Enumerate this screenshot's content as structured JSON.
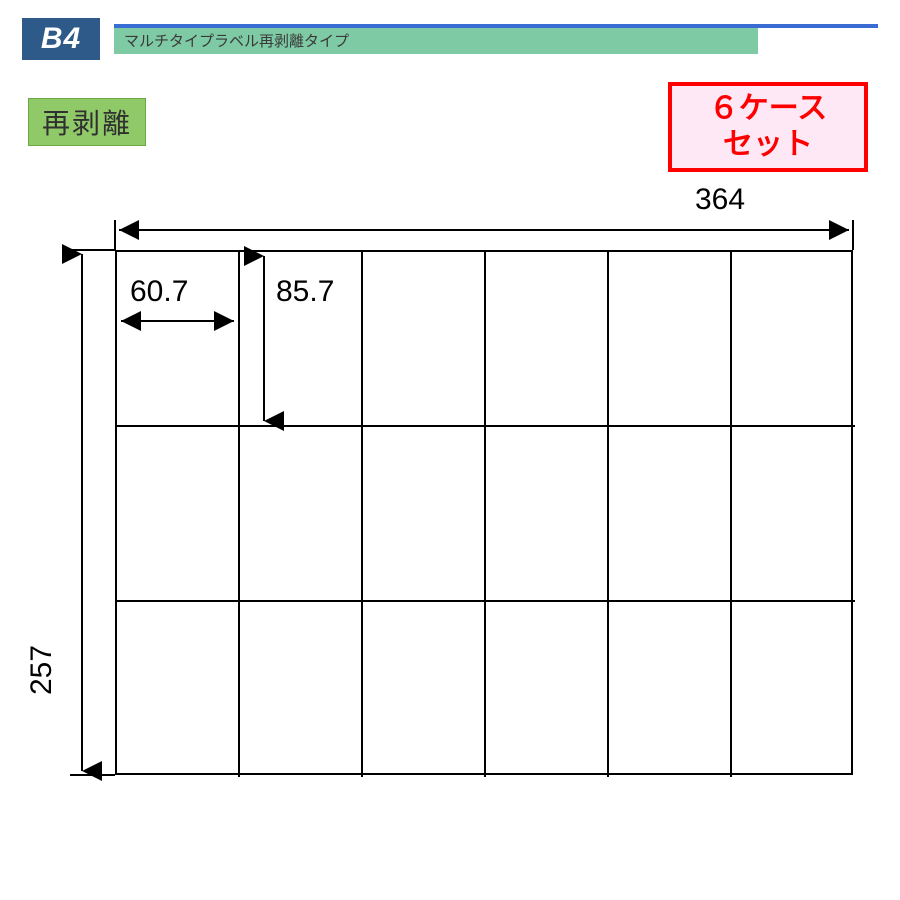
{
  "header": {
    "badge": "B4",
    "subtitle": "マルチタイプラベル再剥離タイプ"
  },
  "badges": {
    "green_label": "再剥離",
    "red_line1": "６ケース",
    "red_line2": "セット"
  },
  "diagram": {
    "type": "grid-layout",
    "sheet_width_mm": 364,
    "sheet_height_mm": 257,
    "cell_width_mm": 60.7,
    "cell_height_mm": 85.7,
    "columns": 6,
    "rows": 3,
    "labels": {
      "width": "364",
      "height": "257",
      "cell_w": "60.7",
      "cell_h": "85.7"
    },
    "colors": {
      "line": "#000000",
      "background": "#ffffff"
    },
    "line_width": 2,
    "arrow_size": 12
  },
  "colors": {
    "b4_badge_bg": "#2e5a8a",
    "header_strip": "#7ecaa4",
    "header_blue": "#3a6dd4",
    "green_badge": "#8fc968",
    "red": "#ff0000",
    "red_bg": "#ffe8f5"
  }
}
